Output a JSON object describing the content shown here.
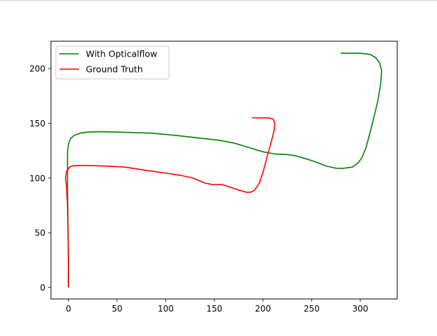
{
  "chart_data": {
    "type": "line",
    "title": "",
    "xlabel": "",
    "ylabel": "",
    "xlim": [
      -18,
      338
    ],
    "ylim": [
      -10.5,
      225
    ],
    "xticks": [
      0,
      50,
      100,
      150,
      200,
      250,
      300
    ],
    "yticks": [
      0,
      50,
      100,
      150,
      200
    ],
    "grid": false,
    "legend_position": "upper left",
    "series": [
      {
        "name": "With Opticalflow",
        "color": "#008000",
        "points": [
          [
            0,
            0
          ],
          [
            0,
            20
          ],
          [
            -0.5,
            60
          ],
          [
            -1,
            90
          ],
          [
            -1,
            112
          ],
          [
            -1,
            124
          ],
          [
            0,
            131
          ],
          [
            2,
            136
          ],
          [
            6,
            139
          ],
          [
            12,
            141
          ],
          [
            20,
            142
          ],
          [
            30,
            142.3
          ],
          [
            50,
            142
          ],
          [
            85,
            141
          ],
          [
            110,
            139
          ],
          [
            130,
            137
          ],
          [
            155,
            134.5
          ],
          [
            170,
            132
          ],
          [
            185,
            128
          ],
          [
            200,
            124
          ],
          [
            212,
            122
          ],
          [
            225,
            121.5
          ],
          [
            235,
            120
          ],
          [
            250,
            116
          ],
          [
            265,
            111
          ],
          [
            275,
            109
          ],
          [
            282,
            108.8
          ],
          [
            292,
            110
          ],
          [
            298,
            114
          ],
          [
            302,
            119
          ],
          [
            306,
            128
          ],
          [
            312,
            148
          ],
          [
            318,
            170
          ],
          [
            321,
            186
          ],
          [
            322,
            198
          ],
          [
            320,
            205
          ],
          [
            316,
            210
          ],
          [
            310,
            213
          ],
          [
            300,
            214
          ],
          [
            290,
            214
          ],
          [
            280,
            214
          ]
        ]
      },
      {
        "name": "Ground Truth",
        "color": "#ff0000",
        "points": [
          [
            0,
            0
          ],
          [
            0,
            20
          ],
          [
            -0.5,
            50
          ],
          [
            -1,
            75
          ],
          [
            -2,
            92
          ],
          [
            -3,
            100
          ],
          [
            -2,
            106
          ],
          [
            1,
            110
          ],
          [
            5,
            111.3
          ],
          [
            15,
            111.5
          ],
          [
            35,
            111
          ],
          [
            58,
            110
          ],
          [
            80,
            107
          ],
          [
            100,
            104.5
          ],
          [
            115,
            102.5
          ],
          [
            128,
            100
          ],
          [
            140,
            95.5
          ],
          [
            148,
            94
          ],
          [
            158,
            94
          ],
          [
            165,
            92
          ],
          [
            175,
            89
          ],
          [
            183,
            87
          ],
          [
            187,
            87
          ],
          [
            191,
            88.5
          ],
          [
            196,
            95
          ],
          [
            200,
            105
          ],
          [
            205,
            122
          ],
          [
            210,
            138
          ],
          [
            212,
            146
          ],
          [
            212,
            151
          ],
          [
            210,
            154
          ],
          [
            205,
            155
          ],
          [
            195,
            155
          ],
          [
            189,
            155
          ]
        ]
      }
    ]
  }
}
